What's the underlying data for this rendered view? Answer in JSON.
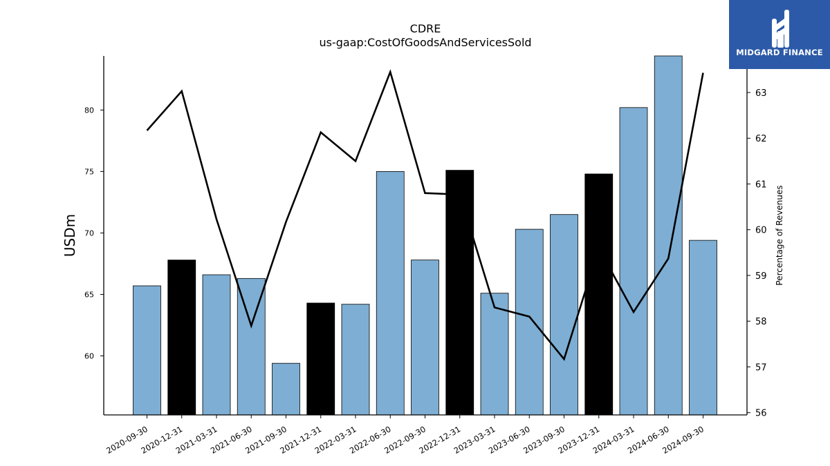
{
  "chart_data": {
    "type": "bar",
    "title": "CDRE",
    "subtitle": "us-gaap:CostOfGoodsAndServicesSold",
    "ylabel": "USDm",
    "y2label": "Percentage of Revenues",
    "categories": [
      "2020-09-30",
      "2020-12-31",
      "2021-03-31",
      "2021-06-30",
      "2021-09-30",
      "2021-12-31",
      "2022-03-31",
      "2022-06-30",
      "2022-09-30",
      "2022-12-31",
      "2023-03-31",
      "2023-06-30",
      "2023-09-30",
      "2023-12-31",
      "2024-03-31",
      "2024-06-30",
      "2024-09-30"
    ],
    "series": [
      {
        "type": "bar",
        "values": [
          65.7,
          67.8,
          66.6,
          66.3,
          59.4,
          64.3,
          64.2,
          75.0,
          67.8,
          75.1,
          65.1,
          70.3,
          71.5,
          74.8,
          80.2,
          84.4,
          69.4
        ],
        "highlight": [
          false,
          true,
          false,
          false,
          false,
          true,
          false,
          false,
          false,
          true,
          false,
          false,
          false,
          true,
          false,
          false,
          false
        ],
        "color": "#7eaed3",
        "highlight_color": "#000000"
      },
      {
        "type": "line",
        "axis": "right",
        "values": [
          62.17,
          63.03,
          60.23,
          57.9,
          60.17,
          62.13,
          61.5,
          63.45,
          60.8,
          60.77,
          58.3,
          58.1,
          57.17,
          59.6,
          58.2,
          59.37,
          63.43
        ],
        "color": "#000000"
      }
    ],
    "ylim": [
      55.2,
      84.4
    ],
    "y2lim": [
      55.95,
      63.8
    ],
    "yticks": [
      60,
      65,
      70,
      75,
      80
    ],
    "y2ticks": [
      56,
      57,
      58,
      59,
      60,
      61,
      62,
      63
    ]
  },
  "logo": {
    "text": "MIDGARD FINANCE"
  }
}
